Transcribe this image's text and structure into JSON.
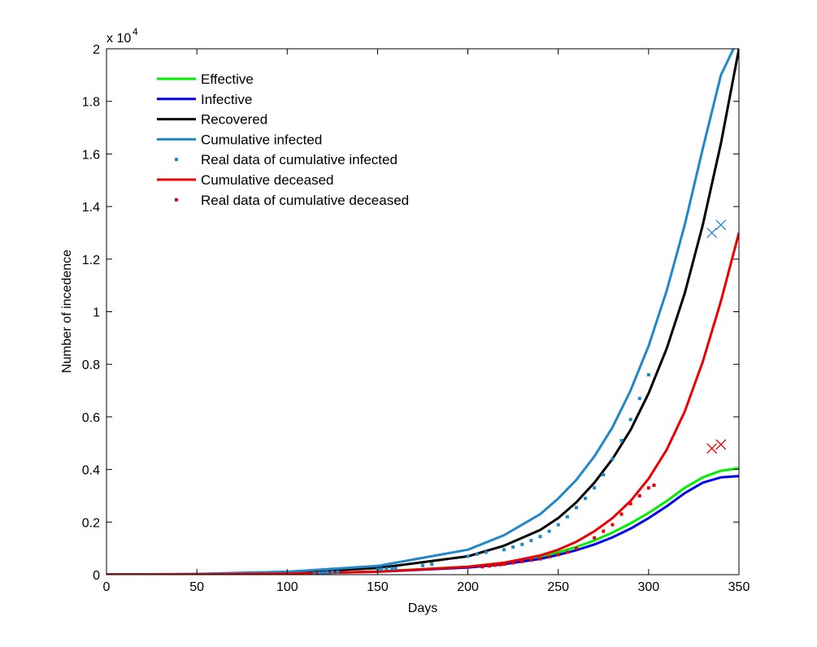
{
  "chart_data": {
    "type": "line",
    "xlabel": "Days",
    "ylabel": "Number of incedence",
    "y_multiplier": "x 10",
    "y_multiplier_exp": "4",
    "xlim": [
      0,
      350
    ],
    "ylim": [
      0,
      20000
    ],
    "grid": false,
    "legend_position": "top-left",
    "x_ticks": [
      0,
      50,
      100,
      150,
      200,
      250,
      300,
      350
    ],
    "x_tick_labels": [
      "0",
      "50",
      "100",
      "150",
      "200",
      "250",
      "300",
      "350"
    ],
    "y_ticks": [
      0,
      2000,
      4000,
      6000,
      8000,
      10000,
      12000,
      14000,
      16000,
      18000,
      20000
    ],
    "y_tick_labels": [
      "0",
      "0.2",
      "0.4",
      "0.6",
      "0.8",
      "1",
      "1.2",
      "1.4",
      "1.6",
      "1.8",
      "2"
    ],
    "series": [
      {
        "name": "Effective",
        "kind": "line",
        "color": "#00ee00",
        "x": [
          0,
          50,
          100,
          150,
          200,
          220,
          240,
          250,
          260,
          270,
          280,
          290,
          300,
          310,
          320,
          330,
          340,
          350
        ],
        "y": [
          5,
          10,
          40,
          120,
          300,
          450,
          680,
          850,
          1050,
          1300,
          1600,
          1950,
          2350,
          2800,
          3300,
          3700,
          3950,
          4050
        ]
      },
      {
        "name": "Infective",
        "kind": "line",
        "color": "#0000ee",
        "x": [
          0,
          50,
          100,
          150,
          200,
          220,
          240,
          250,
          260,
          270,
          280,
          290,
          300,
          310,
          320,
          330,
          340,
          350
        ],
        "y": [
          5,
          10,
          35,
          110,
          270,
          400,
          600,
          750,
          930,
          1150,
          1420,
          1750,
          2150,
          2600,
          3100,
          3500,
          3700,
          3750
        ]
      },
      {
        "name": "Recovered",
        "kind": "line",
        "color": "#000000",
        "x": [
          0,
          50,
          100,
          150,
          200,
          220,
          240,
          250,
          260,
          270,
          280,
          290,
          300,
          310,
          320,
          330,
          340,
          350
        ],
        "y": [
          0,
          20,
          80,
          250,
          700,
          1100,
          1700,
          2150,
          2750,
          3500,
          4400,
          5500,
          6900,
          8600,
          10700,
          13300,
          16400,
          20000
        ]
      },
      {
        "name": "Cumulative infected",
        "kind": "line",
        "color": "#1e88c8",
        "x": [
          0,
          50,
          100,
          150,
          200,
          220,
          240,
          250,
          260,
          270,
          280,
          290,
          300,
          310,
          320,
          330,
          340,
          347
        ],
        "y": [
          0,
          30,
          110,
          330,
          950,
          1500,
          2300,
          2900,
          3600,
          4500,
          5600,
          7000,
          8700,
          10800,
          13300,
          16200,
          19000,
          20000
        ]
      },
      {
        "name": "Real data of cumulative infected",
        "kind": "scatter",
        "color": "#1e88c8",
        "x": [
          115,
          118,
          120,
          122,
          125,
          128,
          150,
          152,
          155,
          158,
          160,
          175,
          180,
          200,
          205,
          210,
          220,
          225,
          230,
          235,
          240,
          245,
          250,
          255,
          260,
          265,
          270,
          275,
          280,
          285,
          290,
          295,
          300
        ],
        "y": [
          50,
          60,
          70,
          80,
          90,
          100,
          200,
          210,
          220,
          230,
          240,
          350,
          400,
          700,
          780,
          850,
          950,
          1050,
          1150,
          1300,
          1450,
          1650,
          1900,
          2200,
          2550,
          2900,
          3300,
          3800,
          4400,
          5100,
          5900,
          6700,
          7600
        ]
      },
      {
        "name": "Cumulative deceased",
        "kind": "line",
        "color": "#ee0000",
        "x": [
          0,
          50,
          100,
          150,
          200,
          220,
          240,
          250,
          260,
          270,
          280,
          290,
          300,
          310,
          320,
          330,
          340,
          350
        ],
        "y": [
          0,
          10,
          40,
          110,
          300,
          450,
          730,
          950,
          1250,
          1650,
          2150,
          2800,
          3650,
          4750,
          6200,
          8100,
          10400,
          13000
        ]
      },
      {
        "name": "Real data of cumulative deceased",
        "kind": "scatter",
        "color": "#ee0000",
        "x": [
          208,
          212,
          215,
          218,
          220,
          225,
          230,
          235,
          240,
          245,
          250,
          255,
          260,
          270,
          275,
          280,
          285,
          290,
          295,
          300,
          303
        ],
        "y": [
          300,
          330,
          360,
          380,
          400,
          450,
          500,
          550,
          600,
          680,
          760,
          850,
          1000,
          1400,
          1650,
          1900,
          2300,
          2700,
          3000,
          3300,
          3400
        ]
      },
      {
        "name": "",
        "kind": "x-marker",
        "color": "#1e88c8",
        "x": [
          335,
          340
        ],
        "y": [
          13000,
          13300
        ]
      },
      {
        "name": "",
        "kind": "x-marker",
        "color": "#ee0000",
        "x": [
          335,
          340
        ],
        "y": [
          4800,
          4950
        ]
      }
    ]
  }
}
